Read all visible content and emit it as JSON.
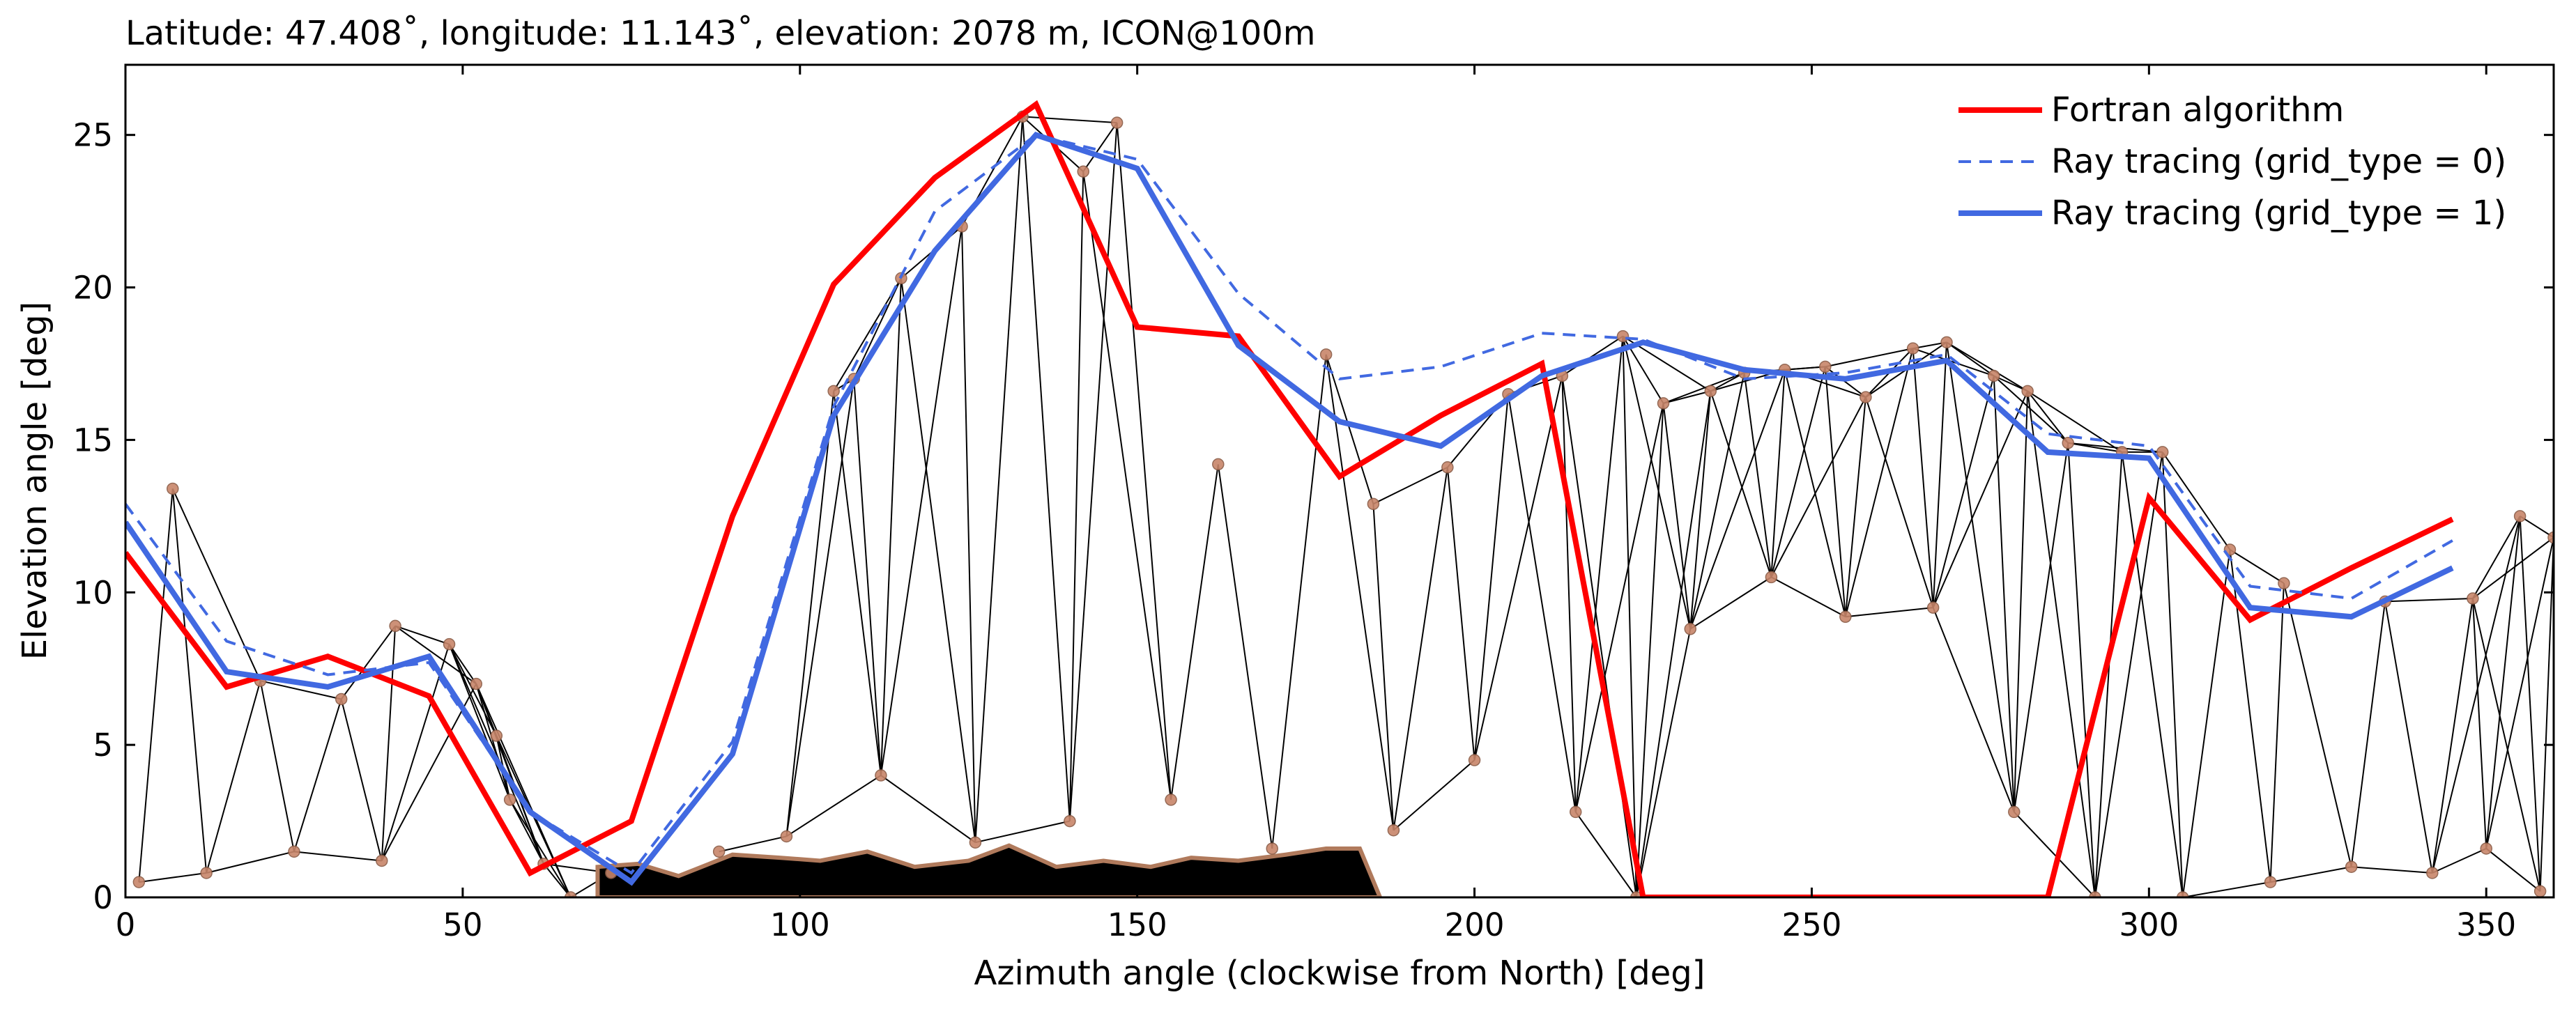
{
  "chart_data": {
    "type": "line",
    "title": "Latitude: 47.408˚, longitude: 11.143˚, elevation: 2078 m, ICON@100m",
    "xlabel": "Azimuth angle (clockwise from North) [deg]",
    "ylabel": "Elevation angle [deg]",
    "xlim": [
      0,
      360
    ],
    "ylim": [
      0,
      27.3
    ],
    "xticks": [
      "0",
      "50",
      "100",
      "150",
      "200",
      "250",
      "300",
      "350"
    ],
    "yticks": [
      "0",
      "5",
      "10",
      "15",
      "20",
      "25"
    ],
    "grid": false,
    "legend_position": "top-right",
    "series": [
      {
        "name": "Fortran algorithm",
        "color": "#ff0000",
        "style": "solid",
        "x": [
          0,
          15,
          30,
          45,
          60,
          75,
          90,
          105,
          120,
          135,
          150,
          165,
          180,
          195,
          210,
          225,
          240,
          255,
          270,
          285,
          300,
          315,
          330,
          345
        ],
        "y": [
          11.3,
          6.9,
          7.9,
          6.6,
          0.8,
          2.5,
          12.5,
          20.1,
          23.6,
          26.0,
          18.7,
          18.4,
          13.8,
          15.8,
          17.5,
          0.0,
          0.0,
          0.0,
          0.0,
          0.0,
          13.1,
          9.1,
          10.8,
          12.4
        ]
      },
      {
        "name": "Ray tracing (grid_type = 0)",
        "color": "#4169e1",
        "style": "dashed",
        "x": [
          0,
          15,
          30,
          45,
          60,
          75,
          90,
          105,
          120,
          135,
          150,
          165,
          180,
          195,
          210,
          225,
          240,
          255,
          270,
          285,
          300,
          315,
          330,
          345
        ],
        "y": [
          12.9,
          8.4,
          7.3,
          7.7,
          2.8,
          0.8,
          5.1,
          16.1,
          22.5,
          25.0,
          24.2,
          19.8,
          17.0,
          17.4,
          18.5,
          18.3,
          17.0,
          17.2,
          17.8,
          15.2,
          14.8,
          10.2,
          9.8,
          11.7
        ]
      },
      {
        "name": "Ray tracing (grid_type = 1)",
        "color": "#4169e1",
        "style": "solid",
        "x": [
          0,
          15,
          30,
          45,
          60,
          75,
          90,
          105,
          120,
          135,
          150,
          165,
          180,
          195,
          210,
          225,
          240,
          255,
          270,
          285,
          300,
          315,
          330,
          345
        ],
        "y": [
          12.3,
          7.4,
          6.9,
          7.9,
          2.8,
          0.5,
          4.7,
          15.8,
          21.2,
          25.0,
          23.9,
          18.1,
          15.6,
          14.8,
          17.1,
          18.2,
          17.3,
          17.0,
          17.6,
          14.6,
          14.4,
          9.5,
          9.2,
          10.8
        ]
      }
    ],
    "terrain_peaks": [
      [
        7,
        13.4
      ],
      [
        20,
        7.1
      ],
      [
        32,
        6.5
      ],
      [
        40,
        8.9
      ],
      [
        48,
        8.3
      ],
      [
        52,
        7.0
      ],
      [
        55,
        5.3
      ],
      [
        57,
        3.2
      ],
      [
        62,
        1.1
      ],
      [
        105,
        16.6
      ],
      [
        108,
        17.0
      ],
      [
        115,
        20.3
      ],
      [
        124,
        22.0
      ],
      [
        133,
        25.6
      ],
      [
        142,
        23.8
      ],
      [
        147,
        25.4
      ],
      [
        162,
        14.2
      ],
      [
        178,
        17.8
      ],
      [
        185,
        12.9
      ],
      [
        196,
        14.1
      ],
      [
        205,
        16.5
      ],
      [
        213,
        17.1
      ],
      [
        222,
        18.4
      ],
      [
        228,
        16.2
      ],
      [
        235,
        16.6
      ],
      [
        240,
        17.2
      ],
      [
        246,
        17.3
      ],
      [
        252,
        17.4
      ],
      [
        258,
        16.4
      ],
      [
        265,
        18.0
      ],
      [
        270,
        18.2
      ],
      [
        277,
        17.1
      ],
      [
        282,
        16.6
      ],
      [
        288,
        14.9
      ],
      [
        296,
        14.6
      ],
      [
        302,
        14.6
      ],
      [
        312,
        11.4
      ],
      [
        320,
        10.3
      ],
      [
        335,
        9.7
      ],
      [
        348,
        9.8
      ],
      [
        355,
        12.5
      ],
      [
        360,
        11.8
      ]
    ],
    "terrain_valleys": [
      [
        2,
        0.5
      ],
      [
        12,
        0.8
      ],
      [
        25,
        1.5
      ],
      [
        38,
        1.2
      ],
      [
        66,
        0.0
      ],
      [
        72,
        0.8
      ],
      [
        88,
        1.5
      ],
      [
        98,
        2.0
      ],
      [
        112,
        4.0
      ],
      [
        126,
        1.8
      ],
      [
        140,
        2.5
      ],
      [
        155,
        3.2
      ],
      [
        170,
        1.6
      ],
      [
        188,
        2.2
      ],
      [
        200,
        4.5
      ],
      [
        215,
        2.8
      ],
      [
        224,
        0.0
      ],
      [
        232,
        8.8
      ],
      [
        244,
        10.5
      ],
      [
        255,
        9.2
      ],
      [
        268,
        9.5
      ],
      [
        280,
        2.8
      ],
      [
        292,
        0.0
      ],
      [
        305,
        0.0
      ],
      [
        318,
        0.5
      ],
      [
        330,
        1.0
      ],
      [
        342,
        0.8
      ],
      [
        350,
        1.6
      ],
      [
        358,
        0.2
      ]
    ],
    "terrain_ground": [
      [
        70,
        1.0
      ],
      [
        76,
        1.1
      ],
      [
        82,
        0.7
      ],
      [
        90,
        1.4
      ],
      [
        97,
        1.3
      ],
      [
        103,
        1.2
      ],
      [
        110,
        1.5
      ],
      [
        117,
        1.0
      ],
      [
        125,
        1.2
      ],
      [
        131,
        1.7
      ],
      [
        138,
        1.0
      ],
      [
        145,
        1.2
      ],
      [
        152,
        1.0
      ],
      [
        158,
        1.3
      ],
      [
        165,
        1.2
      ],
      [
        172,
        1.4
      ],
      [
        178,
        1.6
      ],
      [
        183,
        1.6
      ],
      [
        186,
        0.0
      ]
    ]
  }
}
